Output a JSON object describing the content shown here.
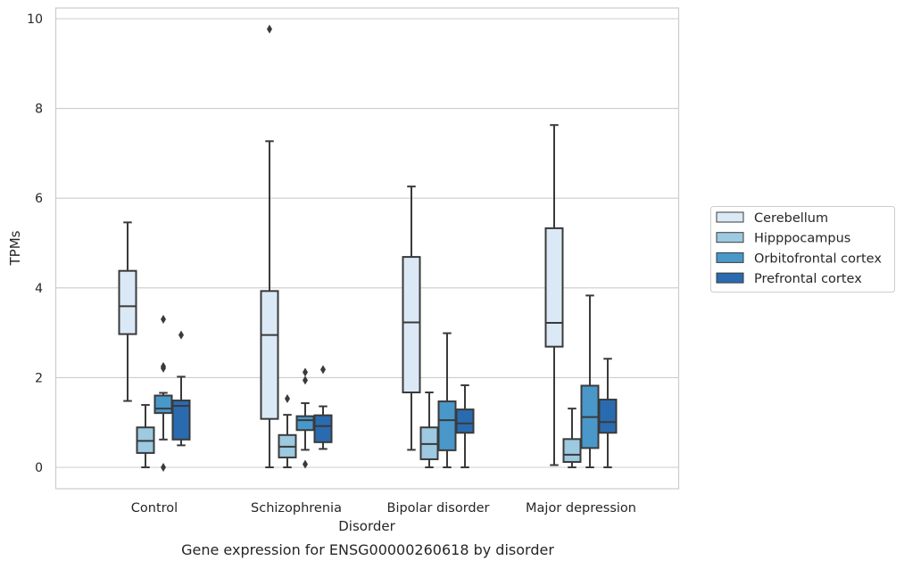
{
  "chart_data": {
    "type": "box",
    "caption": "Gene expression for ENSG00000260618 by disorder",
    "xlabel": "Disorder",
    "ylabel": "TPMs",
    "ylim": [
      -0.45,
      10.25
    ],
    "yticks": [
      0,
      2,
      4,
      6,
      8,
      10
    ],
    "grid": "horizontal",
    "legend_position": "right",
    "categories": [
      "Control",
      "Schizophrenia",
      "Bipolar disorder",
      "Major depression"
    ],
    "series": [
      {
        "name": "Cerebellum",
        "color": "#dbe9f6",
        "boxes": [
          {
            "whisker_low": 1.48,
            "q1": 2.97,
            "median": 3.59,
            "q3": 4.38,
            "whisker_high": 5.46,
            "outliers": []
          },
          {
            "whisker_low": 0.0,
            "q1": 1.08,
            "median": 2.95,
            "q3": 3.93,
            "whisker_high": 7.27,
            "outliers": [
              9.77
            ]
          },
          {
            "whisker_low": 0.39,
            "q1": 1.67,
            "median": 3.23,
            "q3": 4.69,
            "whisker_high": 6.26,
            "outliers": []
          },
          {
            "whisker_low": 0.05,
            "q1": 2.69,
            "median": 3.22,
            "q3": 5.33,
            "whisker_high": 7.63,
            "outliers": []
          }
        ]
      },
      {
        "name": "Hipppocampus",
        "color": "#9dc9e1",
        "boxes": [
          {
            "whisker_low": 0.0,
            "q1": 0.32,
            "median": 0.59,
            "q3": 0.89,
            "whisker_high": 1.39,
            "outliers": []
          },
          {
            "whisker_low": 0.0,
            "q1": 0.22,
            "median": 0.46,
            "q3": 0.72,
            "whisker_high": 1.17,
            "outliers": [
              1.53
            ]
          },
          {
            "whisker_low": 0.0,
            "q1": 0.18,
            "median": 0.52,
            "q3": 0.89,
            "whisker_high": 1.67,
            "outliers": []
          },
          {
            "whisker_low": 0.0,
            "q1": 0.12,
            "median": 0.28,
            "q3": 0.63,
            "whisker_high": 1.31,
            "outliers": []
          }
        ]
      },
      {
        "name": "Orbitofrontal cortex",
        "color": "#4a98c9",
        "boxes": [
          {
            "whisker_low": 0.62,
            "q1": 1.21,
            "median": 1.31,
            "q3": 1.6,
            "whisker_high": 1.66,
            "outliers": [
              0.0,
              2.21,
              2.25,
              3.3
            ]
          },
          {
            "whisker_low": 0.39,
            "q1": 0.83,
            "median": 1.05,
            "q3": 1.14,
            "whisker_high": 1.43,
            "outliers": [
              0.07,
              1.94,
              2.12
            ]
          },
          {
            "whisker_low": 0.0,
            "q1": 0.38,
            "median": 1.05,
            "q3": 1.47,
            "whisker_high": 2.99,
            "outliers": []
          },
          {
            "whisker_low": 0.0,
            "q1": 0.43,
            "median": 1.12,
            "q3": 1.82,
            "whisker_high": 3.83,
            "outliers": []
          }
        ]
      },
      {
        "name": "Prefrontal cortex",
        "color": "#2a6bb0",
        "boxes": [
          {
            "whisker_low": 0.49,
            "q1": 0.62,
            "median": 1.37,
            "q3": 1.49,
            "whisker_high": 2.02,
            "outliers": [
              2.95
            ]
          },
          {
            "whisker_low": 0.41,
            "q1": 0.56,
            "median": 0.92,
            "q3": 1.16,
            "whisker_high": 1.36,
            "outliers": [
              2.18
            ]
          },
          {
            "whisker_low": 0.0,
            "q1": 0.77,
            "median": 0.98,
            "q3": 1.29,
            "whisker_high": 1.83,
            "outliers": []
          },
          {
            "whisker_low": 0.0,
            "q1": 0.77,
            "median": 1.01,
            "q3": 1.51,
            "whisker_high": 2.42,
            "outliers": []
          }
        ]
      }
    ]
  }
}
